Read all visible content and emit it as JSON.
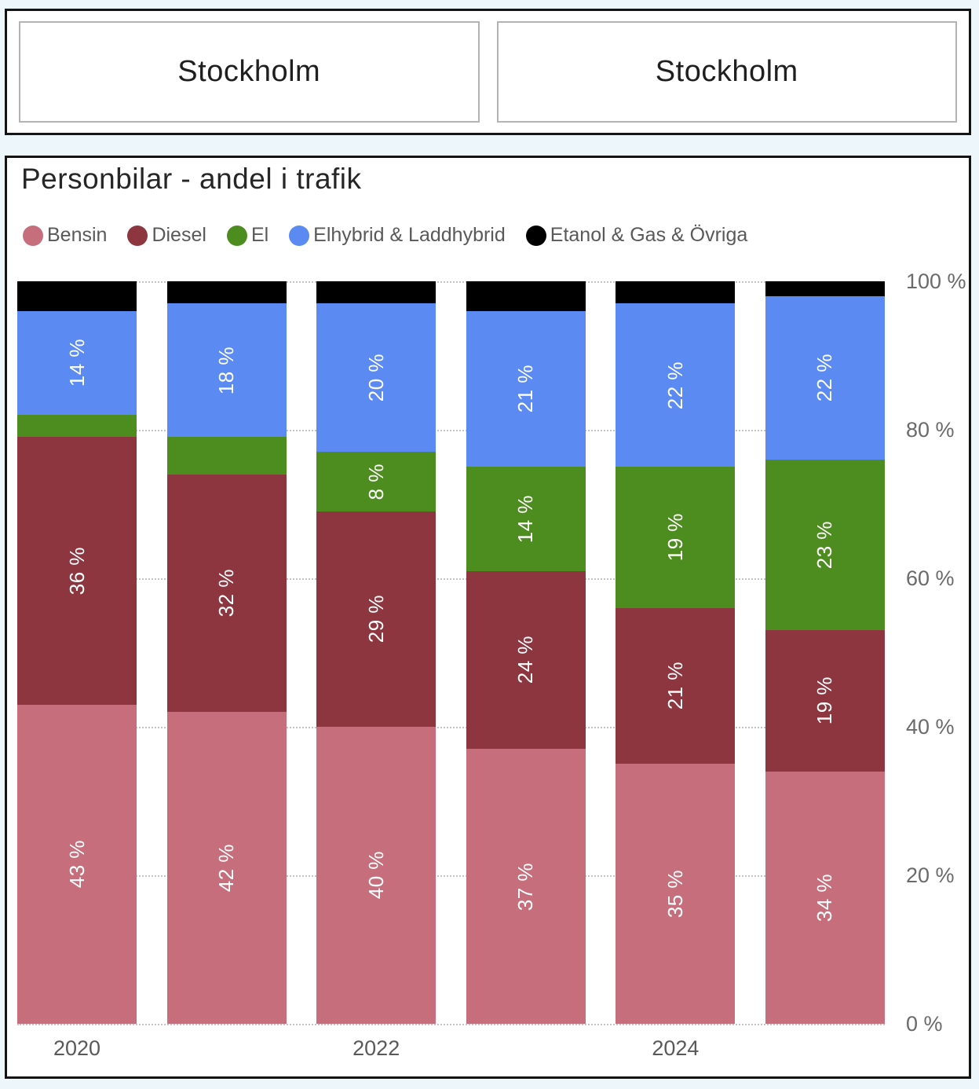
{
  "header": {
    "region_selects": [
      {
        "label": "Stockholm"
      },
      {
        "label": "Stockholm"
      }
    ]
  },
  "chart_data": {
    "type": "bar",
    "subtype": "stacked-100-percent",
    "title": "Personbilar - andel i trafik",
    "unit": "%",
    "grid": "dotted-horizontal",
    "legend_position": "top-left",
    "series_colors": {
      "bensin": "#c66e7b",
      "diesel": "#8d3640",
      "el": "#4d8c1e",
      "elhybrid": "#5a8af2",
      "ovriga": "#000000"
    },
    "legend": [
      {
        "key": "bensin",
        "label": "Bensin"
      },
      {
        "key": "diesel",
        "label": "Diesel"
      },
      {
        "key": "el",
        "label": "El"
      },
      {
        "key": "elhybrid",
        "label": "Elhybrid & Laddhybrid"
      },
      {
        "key": "ovriga",
        "label": "Etanol & Gas & Övriga"
      }
    ],
    "y_axis": {
      "min": 0,
      "max": 100,
      "ticks": [
        {
          "pct": 0,
          "label": "0 %"
        },
        {
          "pct": 20,
          "label": "20 %"
        },
        {
          "pct": 40,
          "label": "40 %"
        },
        {
          "pct": 60,
          "label": "60 %"
        },
        {
          "pct": 80,
          "label": "80 %"
        },
        {
          "pct": 100,
          "label": "100 %"
        }
      ]
    },
    "x_tick_labels": [
      "2020",
      "",
      "2022",
      "",
      "2024",
      ""
    ],
    "bars": [
      {
        "x_label": "2020",
        "segments": [
          {
            "key": "bensin",
            "value": 43,
            "label": "43 %"
          },
          {
            "key": "diesel",
            "value": 36,
            "label": "36 %"
          },
          {
            "key": "el",
            "value": 3,
            "label": null
          },
          {
            "key": "elhybrid",
            "value": 14,
            "label": "14 %"
          },
          {
            "key": "ovriga",
            "value": 4,
            "label": null
          }
        ]
      },
      {
        "x_label": "",
        "segments": [
          {
            "key": "bensin",
            "value": 42,
            "label": "42 %"
          },
          {
            "key": "diesel",
            "value": 32,
            "label": "32 %"
          },
          {
            "key": "el",
            "value": 5,
            "label": null
          },
          {
            "key": "elhybrid",
            "value": 18,
            "label": "18 %"
          },
          {
            "key": "ovriga",
            "value": 3,
            "label": null
          }
        ]
      },
      {
        "x_label": "2022",
        "segments": [
          {
            "key": "bensin",
            "value": 40,
            "label": "40 %"
          },
          {
            "key": "diesel",
            "value": 29,
            "label": "29 %"
          },
          {
            "key": "el",
            "value": 8,
            "label": "8 %"
          },
          {
            "key": "elhybrid",
            "value": 20,
            "label": "20 %"
          },
          {
            "key": "ovriga",
            "value": 3,
            "label": null
          }
        ]
      },
      {
        "x_label": "",
        "segments": [
          {
            "key": "bensin",
            "value": 37,
            "label": "37 %"
          },
          {
            "key": "diesel",
            "value": 24,
            "label": "24 %"
          },
          {
            "key": "el",
            "value": 14,
            "label": "14 %"
          },
          {
            "key": "elhybrid",
            "value": 21,
            "label": "21 %"
          },
          {
            "key": "ovriga",
            "value": 4,
            "label": null
          }
        ]
      },
      {
        "x_label": "2024",
        "segments": [
          {
            "key": "bensin",
            "value": 35,
            "label": "35 %"
          },
          {
            "key": "diesel",
            "value": 21,
            "label": "21 %"
          },
          {
            "key": "el",
            "value": 19,
            "label": "19 %"
          },
          {
            "key": "elhybrid",
            "value": 22,
            "label": "22 %"
          },
          {
            "key": "ovriga",
            "value": 3,
            "label": null
          }
        ]
      },
      {
        "x_label": "",
        "segments": [
          {
            "key": "bensin",
            "value": 34,
            "label": "34 %"
          },
          {
            "key": "diesel",
            "value": 19,
            "label": "19 %"
          },
          {
            "key": "el",
            "value": 23,
            "label": "23 %"
          },
          {
            "key": "elhybrid",
            "value": 22,
            "label": "22 %"
          },
          {
            "key": "ovriga",
            "value": 2,
            "label": null
          }
        ]
      }
    ]
  }
}
